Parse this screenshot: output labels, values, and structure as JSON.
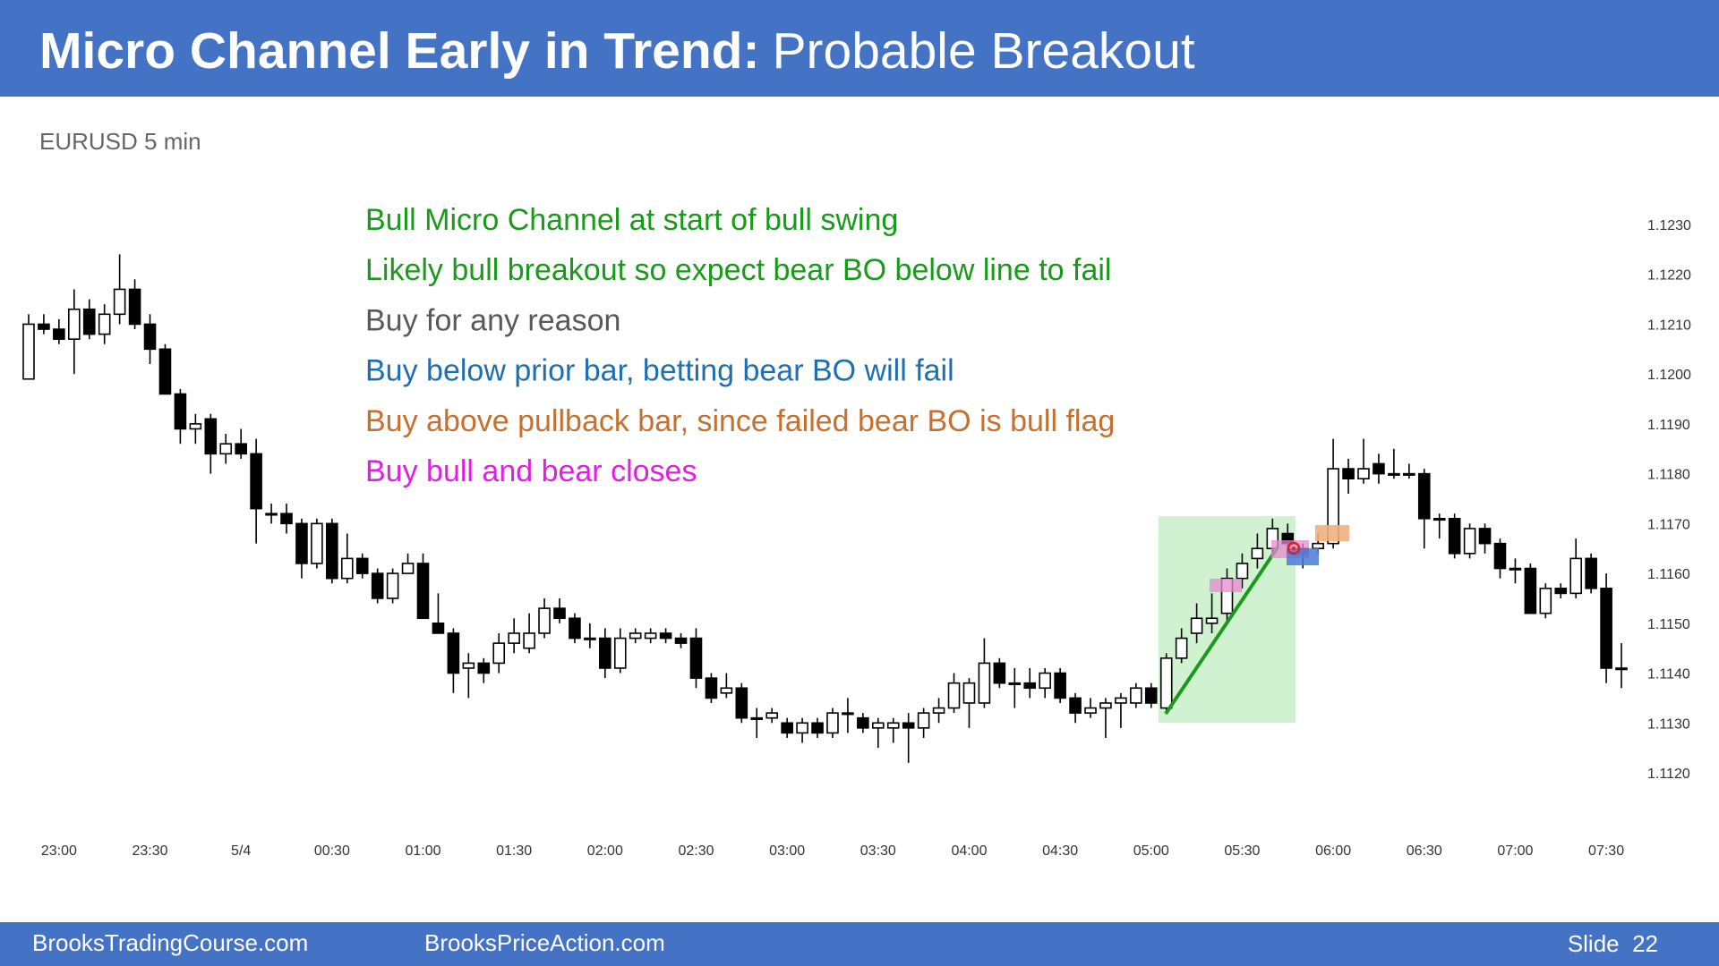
{
  "chart_data": {
    "type": "candlestick",
    "title": "Micro Channel Early in Trend:",
    "title_rest": "Probable Breakout",
    "subtitle": "EURUSD 5 min",
    "annotations": [
      {
        "text": "Bull Micro Channel at start of bull swing",
        "color": "#1a9a1a"
      },
      {
        "text": "Likely bull breakout so expect bear BO below line to fail",
        "color": "#1a9a1a"
      },
      {
        "text": "Buy for any reason",
        "color": "#595959"
      },
      {
        "text": "Buy below prior bar, betting bear BO will fail",
        "color": "#1f6fb0"
      },
      {
        "text": "Buy above pullback bar, since failed bear BO is bull flag",
        "color": "#c5702e"
      },
      {
        "text": "Buy bull and bear closes",
        "color": "#e020e0"
      }
    ],
    "categories": [
      null,
      null,
      "23:00",
      null,
      null,
      null,
      null,
      null,
      "23:30",
      null,
      null,
      null,
      null,
      null,
      "5/4",
      null,
      null,
      null,
      null,
      null,
      "00:30",
      null,
      null,
      null,
      null,
      null,
      "01:00",
      null,
      null,
      null,
      null,
      null,
      "01:30",
      null,
      null,
      null,
      null,
      null,
      "02:00",
      null,
      null,
      null,
      null,
      null,
      "02:30",
      null,
      null,
      null,
      null,
      null,
      "03:00",
      null,
      null,
      null,
      null,
      null,
      "03:30",
      null,
      null,
      null,
      null,
      null,
      "04:00",
      null,
      null,
      null,
      null,
      null,
      "04:30",
      null,
      null,
      null,
      null,
      null,
      "05:00",
      null,
      null,
      null,
      null,
      null,
      "05:30",
      null,
      null,
      null,
      null,
      null,
      "06:00",
      null,
      null,
      null,
      null,
      null,
      "06:30",
      null,
      null,
      null,
      null,
      null,
      "07:00",
      null,
      null,
      null,
      null,
      null,
      "07:30",
      null
    ],
    "open": [
      1.1199,
      1.121,
      1.1209,
      1.1207,
      1.1213,
      1.1208,
      1.1212,
      1.1217,
      1.121,
      1.1205,
      1.1196,
      1.1189,
      1.1191,
      1.1184,
      1.1186,
      1.1184,
      1.1172,
      1.1172,
      1.117,
      1.1162,
      1.117,
      1.1159,
      1.1163,
      1.116,
      1.1155,
      1.116,
      1.1162,
      1.115,
      1.1148,
      1.1141,
      1.1142,
      1.1142,
      1.1146,
      1.1145,
      1.1148,
      1.1153,
      1.1151,
      1.1147,
      1.1147,
      1.1141,
      1.1147,
      1.1147,
      1.1148,
      1.1147,
      1.1147,
      1.1139,
      1.1136,
      1.1137,
      1.1131,
      1.1131,
      1.113,
      1.1128,
      1.113,
      1.1128,
      1.1132,
      1.1131,
      1.1129,
      1.1129,
      1.113,
      1.1129,
      1.1132,
      1.1133,
      1.1134,
      1.1134,
      1.1142,
      1.1138,
      1.1138,
      1.1137,
      1.114,
      1.1135,
      1.1132,
      1.1133,
      1.1134,
      1.1134,
      1.1137,
      1.1133,
      1.1143,
      1.1148,
      1.115,
      1.1152,
      1.1159,
      1.1163,
      1.1165,
      1.1168,
      1.1165,
      1.1165,
      1.1166,
      1.1181,
      1.1179,
      1.1182,
      1.118,
      1.118,
      1.118,
      1.1171,
      1.1171,
      1.1164,
      1.1169,
      1.1166,
      1.1161,
      1.1161,
      1.1152,
      1.1157,
      1.1156,
      1.1163,
      1.1157,
      1.1141
    ],
    "high": [
      1.1212,
      1.1212,
      1.1211,
      1.1217,
      1.1215,
      1.1214,
      1.1224,
      1.1219,
      1.1212,
      1.1206,
      1.1197,
      1.1192,
      1.1192,
      1.1188,
      1.1189,
      1.1187,
      1.1174,
      1.1174,
      1.1171,
      1.1171,
      1.1171,
      1.1168,
      1.1164,
      1.1161,
      1.1161,
      1.1164,
      1.1164,
      1.1156,
      1.1149,
      1.1144,
      1.1143,
      1.1148,
      1.1151,
      1.1152,
      1.1155,
      1.1155,
      1.1152,
      1.115,
      1.1149,
      1.1149,
      1.1149,
      1.1149,
      1.1149,
      1.1148,
      1.1149,
      1.114,
      1.114,
      1.1138,
      1.1133,
      1.1133,
      1.1131,
      1.1131,
      1.1131,
      1.1133,
      1.1135,
      1.1132,
      1.1131,
      1.1131,
      1.1132,
      1.1133,
      1.1135,
      1.114,
      1.1139,
      1.1147,
      1.1143,
      1.1141,
      1.1141,
      1.1141,
      1.1141,
      1.1136,
      1.1135,
      1.1135,
      1.1136,
      1.1138,
      1.1138,
      1.1144,
      1.1149,
      1.1154,
      1.1156,
      1.1161,
      1.1164,
      1.1168,
      1.1171,
      1.117,
      1.1166,
      1.1168,
      1.1187,
      1.1183,
      1.1187,
      1.1184,
      1.1185,
      1.1182,
      1.1181,
      1.1172,
      1.1172,
      1.117,
      1.117,
      1.1167,
      1.1163,
      1.1162,
      1.1158,
      1.1158,
      1.1167,
      1.1164,
      1.116,
      1.1146
    ],
    "low": [
      1.1199,
      1.1208,
      1.1206,
      1.12,
      1.1207,
      1.1206,
      1.121,
      1.1209,
      1.1202,
      1.1196,
      1.1186,
      1.1186,
      1.118,
      1.1182,
      1.1183,
      1.1166,
      1.117,
      1.1168,
      1.1159,
      1.1161,
      1.1158,
      1.1158,
      1.1159,
      1.1154,
      1.1154,
      1.116,
      1.1151,
      1.1148,
      1.1136,
      1.1135,
      1.1138,
      1.114,
      1.1144,
      1.1144,
      1.1147,
      1.115,
      1.1146,
      1.1145,
      1.1139,
      1.114,
      1.1146,
      1.1146,
      1.1146,
      1.1145,
      1.1137,
      1.1134,
      1.1135,
      1.113,
      1.1127,
      1.113,
      1.1127,
      1.1126,
      1.1127,
      1.1127,
      1.1128,
      1.1128,
      1.1125,
      1.1126,
      1.1122,
      1.1127,
      1.113,
      1.1132,
      1.1129,
      1.1133,
      1.1137,
      1.1133,
      1.1135,
      1.1135,
      1.1134,
      1.113,
      1.1131,
      1.1127,
      1.1129,
      1.1133,
      1.1133,
      1.1132,
      1.1142,
      1.1146,
      1.1148,
      1.115,
      1.1157,
      1.1161,
      1.1164,
      1.1164,
      1.1161,
      1.1164,
      1.1165,
      1.1176,
      1.1178,
      1.1178,
      1.1179,
      1.1179,
      1.1165,
      1.1167,
      1.1163,
      1.1163,
      1.1164,
      1.1159,
      1.1158,
      1.1152,
      1.1151,
      1.1155,
      1.1155,
      1.1156,
      1.1138,
      1.1137
    ],
    "close": [
      1.121,
      1.1209,
      1.1207,
      1.1213,
      1.1208,
      1.1212,
      1.1217,
      1.121,
      1.1205,
      1.1196,
      1.1189,
      1.119,
      1.1184,
      1.1186,
      1.1184,
      1.1173,
      1.1172,
      1.117,
      1.1162,
      1.117,
      1.1159,
      1.1163,
      1.116,
      1.1155,
      1.116,
      1.1162,
      1.1151,
      1.1148,
      1.114,
      1.1142,
      1.114,
      1.1146,
      1.1148,
      1.1148,
      1.1153,
      1.1151,
      1.1147,
      1.1147,
      1.1141,
      1.1147,
      1.1148,
      1.1148,
      1.1147,
      1.1146,
      1.1139,
      1.1135,
      1.1137,
      1.1131,
      1.1131,
      1.1132,
      1.1128,
      1.113,
      1.1128,
      1.1132,
      1.1132,
      1.1129,
      1.113,
      1.113,
      1.1129,
      1.1132,
      1.1133,
      1.1138,
      1.1138,
      1.1142,
      1.1138,
      1.1138,
      1.1137,
      1.114,
      1.1135,
      1.1132,
      1.1133,
      1.1134,
      1.1135,
      1.1137,
      1.1134,
      1.1143,
      1.1147,
      1.1151,
      1.1151,
      1.1159,
      1.1162,
      1.1165,
      1.1169,
      1.1166,
      1.1164,
      1.1166,
      1.1181,
      1.1179,
      1.1181,
      1.118,
      1.118,
      1.118,
      1.1171,
      1.1171,
      1.1164,
      1.1169,
      1.1166,
      1.1161,
      1.1161,
      1.1152,
      1.1157,
      1.1156,
      1.1163,
      1.1157,
      1.1141,
      1.1141
    ],
    "ylim": [
      1.112,
      1.123
    ],
    "yticks": [
      {
        "value": 1.123,
        "label": "1.1230"
      },
      {
        "value": 1.122,
        "label": "1.1220"
      },
      {
        "value": 1.121,
        "label": "1.1210"
      },
      {
        "value": 1.12,
        "label": "1.1200"
      },
      {
        "value": 1.119,
        "label": "1.1190"
      },
      {
        "value": 1.118,
        "label": "1.1180"
      },
      {
        "value": 1.117,
        "label": "1.1170"
      },
      {
        "value": 1.116,
        "label": "1.1160"
      },
      {
        "value": 1.115,
        "label": "1.1150"
      },
      {
        "value": 1.114,
        "label": "1.1140"
      },
      {
        "value": 1.113,
        "label": "1.1130"
      },
      {
        "value": 1.112,
        "label": "1.1120"
      }
    ],
    "grid": false,
    "bull_color": "#ffffff",
    "bear_color": "#000000"
  },
  "footer": {
    "left": "BrooksTradingCourse.com",
    "middle": "BrooksPriceAction.com",
    "slide": "Slide  22"
  }
}
